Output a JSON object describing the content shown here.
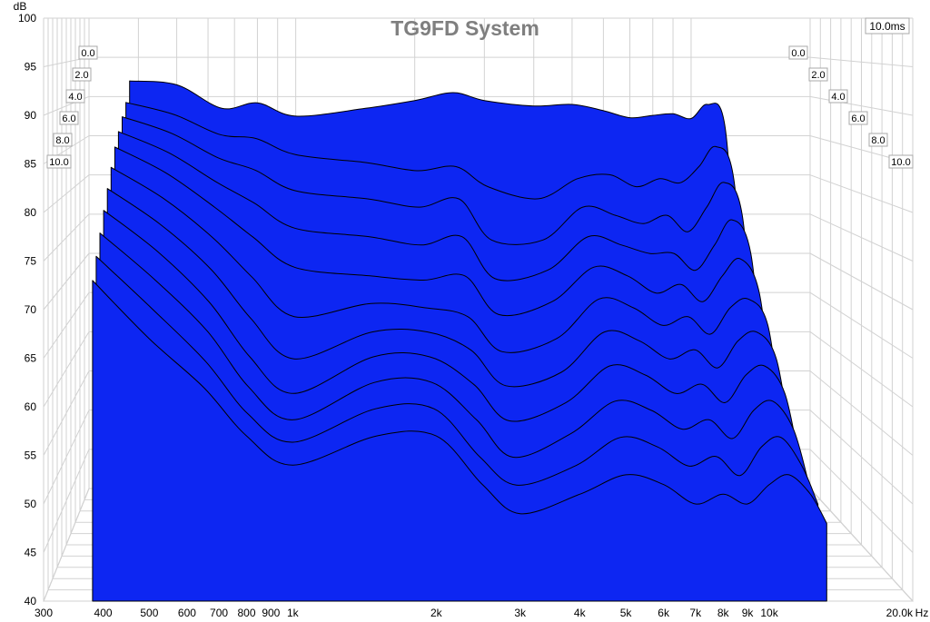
{
  "chart_data": {
    "type": "area",
    "title": "TG9FD System",
    "ylabel": "dB",
    "xunit": "Hz",
    "ylim": [
      40,
      100
    ],
    "xlim": [
      300,
      20000
    ],
    "xscale": "log",
    "grid": true,
    "y_ticks": [
      "100",
      "95",
      "90",
      "85",
      "80",
      "75",
      "70",
      "65",
      "60",
      "55",
      "50",
      "45",
      "40"
    ],
    "x_ticks": [
      {
        "value": 300,
        "label": "300"
      },
      {
        "value": 400,
        "label": "400"
      },
      {
        "value": 500,
        "label": "500"
      },
      {
        "value": 600,
        "label": "600"
      },
      {
        "value": 700,
        "label": "700"
      },
      {
        "value": 800,
        "label": "800"
      },
      {
        "value": 900,
        "label": "900"
      },
      {
        "value": 1000,
        "label": "1k"
      },
      {
        "value": 2000,
        "label": "2k"
      },
      {
        "value": 3000,
        "label": "3k"
      },
      {
        "value": 4000,
        "label": "4k"
      },
      {
        "value": 5000,
        "label": "5k"
      },
      {
        "value": 6000,
        "label": "6k"
      },
      {
        "value": 7000,
        "label": "7k"
      },
      {
        "value": 8000,
        "label": "8k"
      },
      {
        "value": 9000,
        "label": "9k"
      },
      {
        "value": 10000,
        "label": "10k"
      },
      {
        "value": 20000,
        "label": "20.0k"
      }
    ],
    "time_axis_max_label": "10.0ms",
    "time_labels": [
      "0.0",
      "2.0",
      "4.0",
      "6.0",
      "8.0",
      "10.0"
    ],
    "fill_color": "#0d26f2",
    "series": [
      {
        "time_ms": 0.0,
        "x": [
          380,
          500,
          650,
          800,
          1000,
          1500,
          2000,
          2500,
          3000,
          4000,
          5000,
          6000,
          7000,
          8000,
          9000,
          10000,
          11000,
          12200,
          13200
        ],
        "y": [
          92,
          91.5,
          88.5,
          89.2,
          87.5,
          88.5,
          89.5,
          90.5,
          89.5,
          88.8,
          89,
          88.2,
          87.3,
          87.6,
          87.8,
          87.2,
          89,
          86,
          62
        ]
      },
      {
        "time_ms": 1.0,
        "x": [
          380,
          500,
          650,
          800,
          1000,
          1500,
          2000,
          2500,
          3000,
          4000,
          5000,
          6000,
          7000,
          8000,
          9000,
          10000,
          11000,
          12200,
          13200
        ],
        "y": [
          89.5,
          88,
          85.5,
          85,
          83,
          82,
          81,
          81.5,
          79,
          77.5,
          80,
          80.5,
          79,
          80,
          79.5,
          81.5,
          84,
          80,
          58
        ]
      },
      {
        "time_ms": 2.0,
        "x": [
          380,
          500,
          650,
          800,
          1000,
          1500,
          2000,
          2500,
          3000,
          4000,
          5000,
          6000,
          7000,
          8000,
          9000,
          10000,
          11000,
          12200,
          13200
        ],
        "y": [
          88,
          86,
          83,
          81.5,
          79,
          78,
          77,
          78,
          73,
          73,
          77,
          76,
          75,
          76,
          74,
          77,
          80,
          76,
          56
        ]
      },
      {
        "time_ms": 3.0,
        "x": [
          380,
          500,
          650,
          800,
          1000,
          1500,
          2000,
          2500,
          3000,
          4000,
          5000,
          6000,
          7000,
          8000,
          9000,
          10000,
          11000,
          12200,
          13200
        ],
        "y": [
          86.5,
          84,
          80.5,
          78,
          75,
          74,
          73,
          74,
          69,
          70,
          74,
          73,
          72,
          72,
          70,
          73,
          76,
          72,
          55
        ]
      },
      {
        "time_ms": 4.0,
        "x": [
          380,
          500,
          650,
          800,
          1000,
          1500,
          2000,
          2500,
          3000,
          4000,
          5000,
          6000,
          7000,
          8000,
          9000,
          10000,
          11000,
          12200,
          13200
        ],
        "y": [
          85,
          82,
          78,
          74.5,
          71,
          70,
          69.5,
          70,
          65.5,
          67,
          71,
          70,
          68,
          69,
          67,
          70,
          72,
          68,
          54
        ]
      },
      {
        "time_ms": 5.0,
        "x": [
          380,
          500,
          650,
          800,
          1000,
          1500,
          2000,
          2500,
          3000,
          4000,
          5000,
          6000,
          7000,
          8000,
          9000,
          10000,
          11000,
          12200,
          13200
        ],
        "y": [
          83,
          79.5,
          75,
          70.5,
          66,
          67.5,
          67,
          66,
          62,
          63.5,
          68,
          67,
          65,
          66,
          64,
          67,
          68,
          65,
          53
        ]
      },
      {
        "time_ms": 6.0,
        "x": [
          380,
          500,
          650,
          800,
          1000,
          1500,
          2000,
          2500,
          3000,
          4000,
          5000,
          6000,
          7000,
          8000,
          9000,
          10000,
          11000,
          12200,
          13200
        ],
        "y": [
          81,
          77,
          72,
          66.5,
          62,
          65,
          65,
          63,
          59,
          60.5,
          65,
          64,
          62,
          63,
          61,
          64,
          65,
          62,
          52
        ]
      },
      {
        "time_ms": 7.0,
        "x": [
          380,
          500,
          650,
          800,
          1000,
          1500,
          2000,
          2500,
          3000,
          4000,
          5000,
          6000,
          7000,
          8000,
          9000,
          10000,
          11000,
          12200,
          13200
        ],
        "y": [
          79,
          74.5,
          69,
          63,
          59,
          63,
          63,
          60,
          56,
          58,
          62,
          61,
          59,
          60,
          58,
          61,
          62,
          59,
          51
        ]
      },
      {
        "time_ms": 8.0,
        "x": [
          380,
          500,
          650,
          800,
          1000,
          1500,
          2000,
          2500,
          3000,
          4000,
          5000,
          6000,
          7000,
          8000,
          9000,
          10000,
          11000,
          12200,
          13200
        ],
        "y": [
          77,
          72,
          66.5,
          60.5,
          57,
          61,
          61,
          57,
          53,
          55.5,
          59,
          58,
          56,
          57,
          55,
          58,
          59,
          56,
          50
        ]
      },
      {
        "time_ms": 9.0,
        "x": [
          380,
          500,
          650,
          800,
          1000,
          1500,
          2000,
          2500,
          3000,
          4000,
          5000,
          6000,
          7000,
          8000,
          9000,
          10000,
          11000,
          12200,
          13200
        ],
        "y": [
          75,
          69.5,
          64,
          58.5,
          55.5,
          59,
          59,
          54,
          51,
          53,
          56,
          55,
          53,
          54,
          52,
          55,
          56,
          53,
          49
        ]
      },
      {
        "time_ms": 10.0,
        "x": [
          380,
          500,
          650,
          800,
          1000,
          1500,
          2000,
          2500,
          3000,
          4000,
          5000,
          6000,
          7000,
          8000,
          9000,
          10000,
          11000,
          12200,
          13200
        ],
        "y": [
          73,
          67,
          62,
          57,
          54,
          57,
          57,
          52,
          49,
          51,
          53,
          52,
          50,
          51,
          50,
          52,
          53,
          51,
          48
        ]
      }
    ]
  }
}
